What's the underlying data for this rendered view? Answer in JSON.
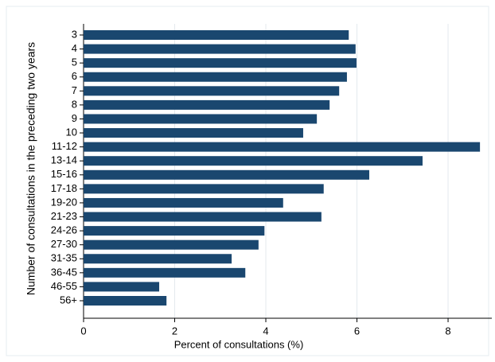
{
  "chart_data": {
    "type": "barh",
    "xlabel": "Percent of consultations (%)",
    "ylabel": "Number of consultations in the preceding two years",
    "categories": [
      "3",
      "4",
      "5",
      "6",
      "7",
      "8",
      "9",
      "10",
      "11-12",
      "13-14",
      "15-16",
      "17-18",
      "19-20",
      "21-23",
      "24-26",
      "27-30",
      "31-35",
      "36-45",
      "46-55",
      "56+"
    ],
    "values": [
      5.82,
      5.97,
      5.99,
      5.78,
      5.61,
      5.4,
      5.12,
      4.82,
      8.7,
      7.44,
      6.27,
      5.27,
      4.38,
      5.22,
      3.97,
      3.84,
      3.25,
      3.55,
      1.66,
      1.82
    ],
    "color": "#1a476f",
    "xlim": [
      0,
      8.96
    ],
    "xticks": [
      0,
      2,
      4,
      6,
      8
    ],
    "grid": true
  }
}
